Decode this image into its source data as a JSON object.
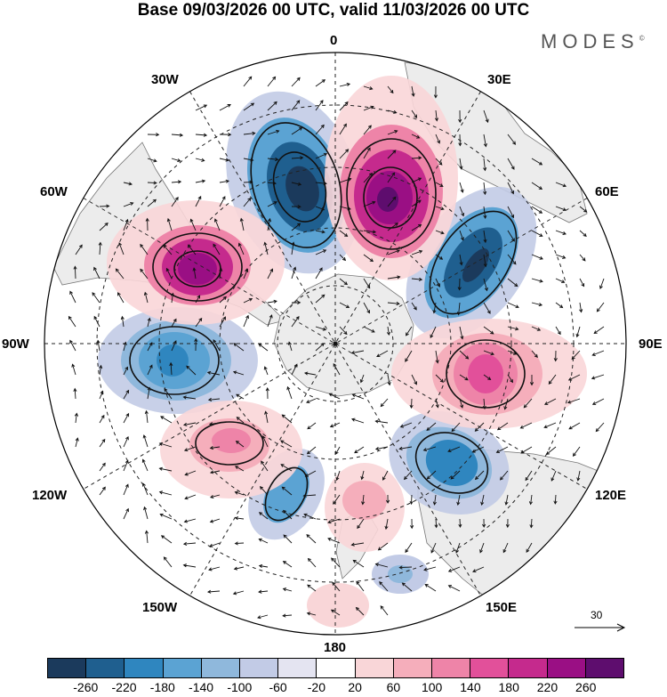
{
  "header": {
    "title": "Base 09/03/2026 00 UTC, valid 11/03/2026 00 UTC",
    "brand": "MODES",
    "brand_mark": "©"
  },
  "map": {
    "projection": "South polar stereographic",
    "meridian_labels": {
      "lon_0": "0",
      "lon_30e": "30E",
      "lon_60e": "60E",
      "lon_90e": "90E",
      "lon_120e": "120E",
      "lon_150e": "150E",
      "lon_180": "180",
      "lon_150w": "150W",
      "lon_120w": "120W",
      "lon_90w": "90W",
      "lon_60w": "60W",
      "lon_30w": "30W"
    },
    "wind_reference": "30"
  },
  "colorbar": {
    "ticks": [
      "-260",
      "-220",
      "-180",
      "-140",
      "-100",
      "-60",
      "-20",
      "20",
      "60",
      "100",
      "140",
      "180",
      "220",
      "260"
    ],
    "colors": [
      "#1b3a5c",
      "#1f5f8f",
      "#2f86bf",
      "#5ba3d3",
      "#8fb8dc",
      "#c2cbe6",
      "#e4e4f1",
      "#ffffff",
      "#f9d6d8",
      "#f5aebb",
      "#ee84a8",
      "#e2509a",
      "#c52a8d",
      "#9a0f84",
      "#5e0d6e"
    ]
  }
}
